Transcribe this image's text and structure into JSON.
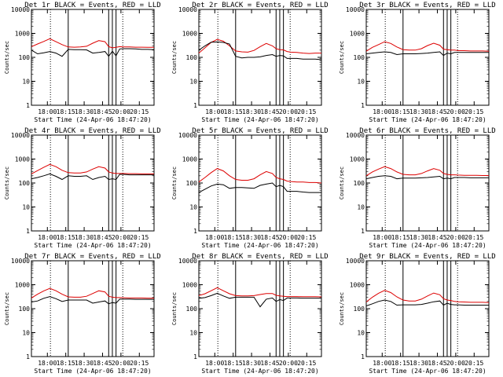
{
  "chart_data": {
    "type": "line",
    "figure": "9-panel detector count-rate grid",
    "shared": {
      "ylabel": "Counts/sec",
      "xlabel": "Start Time (24-Apr-06 18:47:20)",
      "yscale": "log",
      "ylim": [
        1,
        10000
      ],
      "yticks": [
        "1",
        "10",
        "100",
        "1000",
        "10000"
      ],
      "xlim_min_from_start": [
        0,
        100
      ],
      "xticks": [
        "18:00",
        "18:15",
        "18:30",
        "18:45",
        "20:00",
        "20:15"
      ],
      "xtick_pos_min": [
        13,
        28,
        43,
        58,
        73,
        88
      ],
      "dotted_markers_min": [
        15.5,
        74.5
      ],
      "solid_markers_min": [
        30,
        63,
        66,
        69
      ],
      "events_series": {
        "name": "BLACK = Events",
        "color": "#000000"
      },
      "lld_series": {
        "name": "RED = LLD",
        "color": "#dd0000"
      },
      "x_min": [
        0,
        5,
        10,
        15,
        20,
        25,
        30,
        35,
        40,
        45,
        50,
        55,
        60,
        63,
        66,
        69,
        72,
        75,
        80,
        85,
        90,
        95,
        100
      ]
    },
    "panels": [
      {
        "title": "Det 1r BLACK = Events, RED = LLD",
        "events": [
          200,
          140,
          155,
          175,
          150,
          110,
          215,
          210,
          210,
          205,
          150,
          160,
          175,
          110,
          180,
          115,
          225,
          230,
          230,
          225,
          215,
          215,
          210
        ],
        "lld": [
          280,
          360,
          460,
          600,
          450,
          340,
          270,
          265,
          270,
          290,
          390,
          500,
          450,
          280,
          250,
          260,
          280,
          270,
          270,
          265,
          265,
          260,
          260
        ]
      },
      {
        "title": "Det 2r BLACK = Events, RED = LLD",
        "events": [
          200,
          300,
          430,
          440,
          420,
          360,
          110,
          95,
          100,
          100,
          105,
          120,
          130,
          110,
          120,
          115,
          90,
          90,
          90,
          85,
          85,
          85,
          80
        ],
        "lld": [
          150,
          250,
          420,
          560,
          470,
          300,
          185,
          170,
          165,
          195,
          280,
          380,
          300,
          230,
          210,
          205,
          175,
          165,
          160,
          150,
          145,
          150,
          150
        ]
      },
      {
        "title": "Det 3r BLACK = Events, RED = LLD",
        "events": [
          140,
          150,
          160,
          170,
          160,
          130,
          140,
          140,
          140,
          145,
          150,
          160,
          170,
          120,
          150,
          140,
          160,
          160,
          160,
          160,
          160,
          160,
          160
        ],
        "lld": [
          180,
          260,
          340,
          450,
          380,
          270,
          210,
          200,
          200,
          230,
          310,
          390,
          320,
          220,
          210,
          200,
          200,
          190,
          190,
          185,
          185,
          185,
          180
        ]
      },
      {
        "title": "Det 4r BLACK = Events, RED = LLD",
        "events": [
          150,
          170,
          200,
          240,
          190,
          140,
          200,
          190,
          190,
          200,
          140,
          170,
          190,
          140,
          150,
          140,
          230,
          230,
          220,
          220,
          220,
          220,
          220
        ],
        "lld": [
          240,
          330,
          450,
          600,
          480,
          340,
          270,
          260,
          260,
          290,
          380,
          480,
          420,
          290,
          260,
          250,
          250,
          250,
          245,
          245,
          240,
          240,
          240
        ]
      },
      {
        "title": "Det 5r BLACK = Events, RED = LLD",
        "events": [
          40,
          55,
          75,
          90,
          85,
          60,
          65,
          65,
          62,
          60,
          80,
          90,
          100,
          70,
          80,
          70,
          45,
          45,
          45,
          42,
          40,
          40,
          40
        ],
        "lld": [
          110,
          170,
          270,
          400,
          320,
          200,
          140,
          130,
          130,
          150,
          220,
          300,
          250,
          170,
          150,
          140,
          120,
          115,
          110,
          110,
          105,
          105,
          100
        ]
      },
      {
        "title": "Det 6r BLACK = Events, RED = LLD",
        "events": [
          150,
          170,
          190,
          200,
          190,
          150,
          160,
          160,
          160,
          165,
          170,
          180,
          190,
          150,
          160,
          150,
          170,
          170,
          170,
          165,
          165,
          165,
          165
        ],
        "lld": [
          200,
          290,
          380,
          480,
          400,
          290,
          230,
          220,
          220,
          250,
          320,
          400,
          340,
          250,
          230,
          220,
          220,
          215,
          210,
          210,
          210,
          205,
          205
        ]
      },
      {
        "title": "Det 7r BLACK = Events, RED = LLD",
        "events": [
          190,
          210,
          270,
          320,
          260,
          200,
          230,
          230,
          230,
          230,
          170,
          190,
          210,
          160,
          180,
          170,
          250,
          250,
          250,
          245,
          245,
          245,
          245
        ],
        "lld": [
          280,
          400,
          550,
          700,
          560,
          400,
          310,
          300,
          300,
          330,
          430,
          560,
          500,
          330,
          300,
          290,
          290,
          285,
          280,
          280,
          280,
          275,
          275
        ]
      },
      {
        "title": "Det 8r BLACK = Events, RED = LLD",
        "events": [
          270,
          290,
          350,
          440,
          340,
          270,
          300,
          300,
          300,
          300,
          120,
          250,
          280,
          200,
          240,
          220,
          280,
          280,
          280,
          275,
          275,
          275,
          270
        ],
        "lld": [
          350,
          420,
          560,
          750,
          560,
          420,
          350,
          340,
          340,
          350,
          390,
          430,
          430,
          360,
          340,
          330,
          320,
          320,
          320,
          315,
          315,
          315,
          310
        ]
      },
      {
        "title": "Det 9r BLACK = Events, RED = LLD",
        "events": [
          130,
          160,
          200,
          230,
          200,
          140,
          145,
          145,
          145,
          150,
          170,
          195,
          210,
          140,
          170,
          150,
          145,
          145,
          140,
          140,
          140,
          140,
          140
        ],
        "lld": [
          190,
          300,
          440,
          580,
          470,
          310,
          230,
          210,
          210,
          250,
          340,
          450,
          380,
          260,
          230,
          220,
          200,
          195,
          190,
          185,
          185,
          185,
          180
        ]
      }
    ]
  }
}
